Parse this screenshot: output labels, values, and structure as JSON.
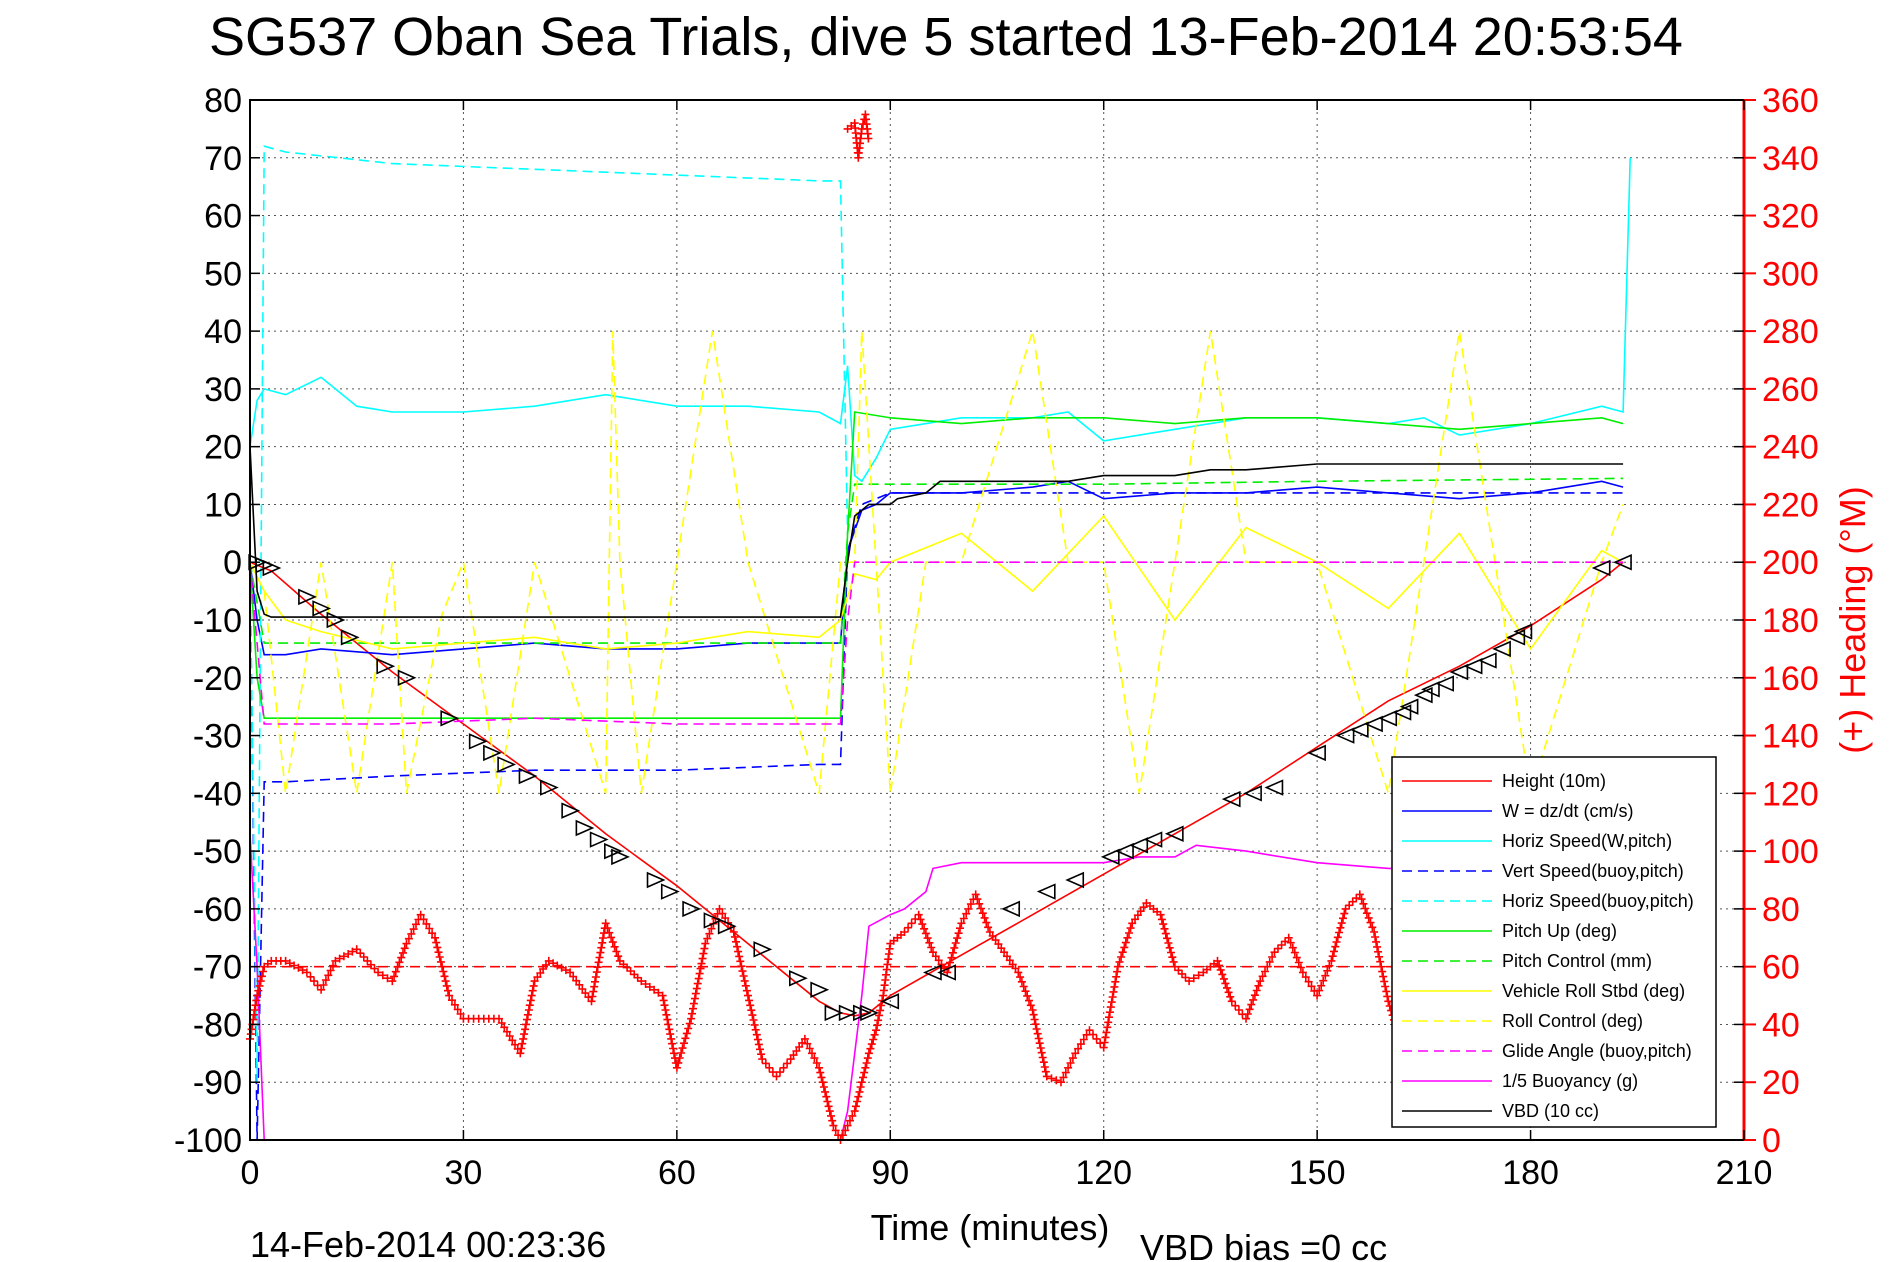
{
  "chart_data": {
    "type": "line",
    "title": "SG537 Oban Sea Trials, dive 5 started 13-Feb-2014 20:53:54",
    "xlabel": "Time (minutes)",
    "ylabel": "",
    "y2label": "(+) Heading (°M)",
    "xlim": [
      0,
      210
    ],
    "ylim": [
      -100,
      80
    ],
    "y2lim": [
      0,
      360
    ],
    "xticks": [
      0,
      30,
      60,
      90,
      120,
      150,
      180,
      210
    ],
    "yticks": [
      -100,
      -90,
      -80,
      -70,
      -60,
      -50,
      -40,
      -30,
      -20,
      -10,
      0,
      10,
      20,
      30,
      40,
      50,
      60,
      70,
      80
    ],
    "y2ticks": [
      0,
      20,
      40,
      60,
      80,
      100,
      120,
      140,
      160,
      180,
      200,
      220,
      240,
      260,
      280,
      300,
      320,
      340,
      360
    ],
    "grid": true,
    "legend_position": "bottom-right",
    "footer_left": "14-Feb-2014 00:23:36",
    "footer_right": "VBD bias =0 cc",
    "colors": {
      "red": "#ff0000",
      "blue": "#0000ff",
      "cyan": "#00ffff",
      "green": "#00ee00",
      "yellow": "#ffff00",
      "magenta": "#ff00ff",
      "black": "#000000"
    },
    "series": [
      {
        "name": "Height (10m)",
        "color": "#ff0000",
        "dash": "solid",
        "x": [
          0,
          1,
          2,
          3,
          10,
          20,
          30,
          40,
          50,
          60,
          70,
          80,
          83,
          85,
          87,
          90,
          100,
          110,
          120,
          130,
          140,
          150,
          160,
          170,
          180,
          190,
          193
        ],
        "y": [
          0,
          -0.5,
          -1,
          -1.5,
          -9,
          -19,
          -28,
          -37,
          -47,
          -56,
          -66,
          -76,
          -78,
          -78.5,
          -78,
          -75,
          -68,
          -61,
          -54,
          -47,
          -40,
          -32,
          -24,
          -18,
          -11,
          -3,
          0
        ]
      },
      {
        "name": "W = dz/dt (cm/s)",
        "color": "#0000ff",
        "dash": "solid",
        "group": "w",
        "x": [
          0,
          1,
          2,
          5,
          10,
          20,
          30,
          40,
          50,
          60,
          70,
          80,
          83,
          84,
          86,
          88,
          90,
          100,
          110,
          115,
          120,
          130,
          140,
          150,
          160,
          170,
          180,
          190,
          193
        ],
        "y": [
          0,
          -10,
          -16,
          -16,
          -15,
          -16,
          -15,
          -14,
          -15,
          -15,
          -14,
          -14,
          -14,
          2,
          9,
          10,
          12,
          12,
          13,
          14,
          11,
          12,
          12,
          13,
          12,
          11,
          12,
          14,
          13
        ]
      },
      {
        "name": "Horiz Speed(W,pitch)",
        "color": "#00ffff",
        "dash": "solid",
        "group": "hs",
        "x": [
          0,
          1,
          2,
          5,
          10,
          15,
          20,
          30,
          40,
          50,
          60,
          70,
          80,
          83,
          84,
          85,
          86,
          88,
          90,
          100,
          110,
          115,
          120,
          130,
          140,
          150,
          160,
          165,
          170,
          180,
          190,
          193,
          194
        ],
        "y": [
          20,
          28,
          30,
          29,
          32,
          27,
          26,
          26,
          27,
          29,
          27,
          27,
          26,
          24,
          34,
          15,
          14,
          18,
          23,
          25,
          25,
          26,
          21,
          23,
          25,
          25,
          24,
          25,
          22,
          24,
          27,
          26,
          70
        ]
      },
      {
        "name": "Vert Speed(buoy,pitch)",
        "color": "#0000ff",
        "dash": "dashed",
        "x": [
          0,
          1,
          2,
          5,
          20,
          40,
          60,
          80,
          83,
          84,
          86,
          88,
          90,
          120,
          150,
          193
        ],
        "y": [
          0,
          -100,
          -38,
          -38,
          -37,
          -36,
          -36,
          -35,
          -35,
          2,
          10,
          11,
          12,
          12,
          12,
          12
        ]
      },
      {
        "name": "Horiz Speed(buoy,pitch)",
        "color": "#00ffff",
        "dash": "dashed",
        "x": [
          0,
          1,
          2,
          5,
          20,
          40,
          60,
          80,
          83,
          84
        ],
        "y": [
          0,
          -90,
          72,
          71,
          69,
          68,
          67,
          66,
          66,
          5
        ]
      },
      {
        "name": "Pitch Up (deg)",
        "color": "#00ee00",
        "dash": "solid",
        "x": [
          0,
          1,
          2,
          5,
          20,
          40,
          60,
          80,
          83,
          84,
          85,
          90,
          100,
          110,
          120,
          130,
          140,
          150,
          160,
          170,
          180,
          190,
          193
        ],
        "y": [
          0,
          -20,
          -27,
          -27,
          -27,
          -27,
          -27,
          -27,
          -27,
          5,
          26,
          25,
          24,
          25,
          25,
          24,
          25,
          25,
          24,
          23,
          24,
          25,
          24
        ]
      },
      {
        "name": "Pitch Control (mm)",
        "color": "#00ee00",
        "dash": "dashed",
        "x": [
          0,
          2,
          5,
          80,
          83,
          84,
          85,
          120,
          150,
          193
        ],
        "y": [
          0,
          -14,
          -14,
          -14,
          -14,
          5,
          13.5,
          13.5,
          14,
          14.5
        ]
      },
      {
        "name": "Vehicle Roll Stbd (deg)",
        "color": "#ffff00",
        "dash": "solid",
        "x": [
          0,
          2,
          5,
          10,
          20,
          30,
          40,
          50,
          60,
          70,
          80,
          83,
          85,
          88,
          90,
          100,
          110,
          120,
          130,
          140,
          150,
          160,
          170,
          180,
          190,
          193
        ],
        "y": [
          0,
          -5,
          -10,
          -12,
          -15,
          -14,
          -13,
          -15,
          -14,
          -12,
          -13,
          -10,
          -2,
          -3,
          0,
          5,
          -5,
          8,
          -10,
          6,
          0,
          -8,
          5,
          -15,
          2,
          0
        ]
      },
      {
        "name": "Roll Control (deg)",
        "color": "#ffff00",
        "dash": "dashed",
        "x": [
          0,
          2,
          5,
          10,
          15,
          20,
          22,
          27,
          30,
          35,
          40,
          50,
          51,
          52,
          55,
          60,
          65,
          70,
          80,
          83,
          85,
          86,
          90,
          95,
          100,
          110,
          115,
          120,
          125,
          130,
          135,
          140,
          150,
          160,
          170,
          180,
          190,
          193
        ],
        "y": [
          0,
          -5,
          -40,
          0,
          -40,
          0,
          -40,
          -9,
          0,
          -40,
          0,
          -40,
          40,
          0,
          -40,
          0,
          40,
          0,
          -40,
          0,
          0,
          40,
          -40,
          0,
          0,
          40,
          0,
          0,
          -40,
          0,
          40,
          0,
          0,
          -40,
          40,
          -40,
          0,
          10
        ]
      },
      {
        "name": "Glide Angle (buoy,pitch)",
        "color": "#ff00ff",
        "dash": "dashed",
        "x": [
          0,
          2,
          5,
          20,
          40,
          60,
          80,
          83,
          84,
          85,
          90,
          120,
          150,
          180,
          193
        ],
        "y": [
          0,
          -28,
          -28,
          -28,
          -27,
          -28,
          -28,
          -28,
          -10,
          0,
          0,
          0,
          0,
          0,
          0
        ]
      },
      {
        "name": "1/5 Buoyancy (g)",
        "color": "#ff00ff",
        "dash": "solid",
        "x": [
          0,
          1,
          2,
          3,
          4,
          70,
          80,
          83,
          84,
          86,
          87,
          90,
          92,
          95,
          96,
          100,
          110,
          120,
          125,
          130,
          133,
          140,
          150,
          160,
          170
        ],
        "y": [
          -47,
          -70,
          -100,
          -100,
          -100,
          -100,
          -100,
          -100,
          -95,
          -75,
          -63,
          -61,
          -60,
          -57,
          -53,
          -52,
          -52,
          -52,
          -51,
          -51,
          -49,
          -50,
          -52,
          -53,
          -53
        ]
      },
      {
        "name": "VBD (10 cc)",
        "color": "#000000",
        "dash": "solid",
        "x": [
          0,
          1,
          2,
          3,
          5,
          20,
          40,
          60,
          80,
          83,
          84,
          85,
          86,
          87,
          89,
          90,
          91,
          95,
          96,
          97,
          100,
          110,
          115,
          120,
          125,
          130,
          135,
          140,
          150,
          160,
          170,
          180,
          190,
          193
        ],
        "y": [
          20,
          -5,
          -9,
          -9.5,
          -9.5,
          -9.5,
          -9.5,
          -9.5,
          -9.5,
          -9.5,
          0,
          8,
          9,
          10,
          10,
          10,
          11,
          12,
          13,
          14,
          14,
          14,
          14,
          15,
          15,
          15,
          16,
          16,
          17,
          17,
          17,
          17,
          17,
          17
        ]
      },
      {
        "name": "Heading",
        "color": "#ff0000",
        "dash": "none",
        "marker": "+",
        "axis": "right",
        "x": [
          0,
          1,
          2,
          3,
          5,
          8,
          10,
          12,
          15,
          18,
          20,
          22,
          24,
          26,
          28,
          30,
          35,
          38,
          40,
          42,
          45,
          48,
          50,
          52,
          55,
          58,
          60,
          62,
          64,
          66,
          68,
          70,
          72,
          74,
          76,
          78,
          80,
          82,
          83,
          84,
          85,
          86,
          87,
          88,
          89,
          90,
          92,
          94,
          96,
          98,
          100,
          102,
          104,
          106,
          108,
          110,
          112,
          114,
          116,
          118,
          120,
          122,
          124,
          126,
          128,
          130,
          132,
          134,
          136,
          138,
          140,
          142,
          144,
          146,
          148,
          150,
          152,
          154,
          156,
          158,
          160,
          162
        ],
        "y": [
          35,
          50,
          60,
          62,
          62,
          58,
          52,
          62,
          66,
          58,
          55,
          68,
          78,
          70,
          50,
          42,
          42,
          30,
          55,
          62,
          58,
          48,
          75,
          62,
          55,
          50,
          25,
          42,
          68,
          80,
          72,
          50,
          28,
          22,
          28,
          35,
          25,
          5,
          0,
          5,
          10,
          20,
          30,
          38,
          50,
          68,
          72,
          78,
          65,
          58,
          75,
          85,
          72,
          65,
          58,
          45,
          22,
          20,
          30,
          38,
          32,
          60,
          75,
          82,
          78,
          60,
          55,
          58,
          62,
          48,
          42,
          55,
          65,
          70,
          58,
          50,
          62,
          80,
          85,
          72,
          48,
          32
        ]
      },
      {
        "name": "Heading target",
        "color": "#ff0000",
        "dash": "dashed",
        "axis": "right",
        "x": [
          0,
          193
        ],
        "y": [
          60,
          60
        ]
      },
      {
        "name": "Heading early",
        "color": "#ff0000",
        "dash": "none",
        "marker": "+",
        "axis": "right",
        "x": [
          84,
          85,
          85.5,
          86,
          86.5,
          87
        ],
        "y": [
          350,
          352,
          340,
          350,
          355,
          345
        ]
      }
    ],
    "markers": {
      "symbol": "triangle",
      "x": [
        1,
        2,
        3,
        8,
        10,
        12,
        14,
        19,
        22,
        28,
        32,
        34,
        36,
        39,
        42,
        45,
        47,
        49,
        51,
        52,
        57,
        59,
        62,
        65,
        67,
        72,
        77,
        80,
        82,
        84,
        86,
        87,
        90,
        96,
        98,
        107,
        112,
        116,
        121,
        123,
        125,
        127,
        130,
        138,
        141,
        144,
        150,
        154,
        156,
        158,
        160,
        162,
        163,
        165,
        166,
        168,
        170,
        172,
        174,
        176,
        178,
        179,
        190,
        193
      ],
      "y": [
        0,
        -0.5,
        -1,
        -6,
        -8,
        -10,
        -13,
        -18,
        -20,
        -27,
        -31,
        -33,
        -35,
        -37,
        -39,
        -43,
        -46,
        -48,
        -50,
        -51,
        -55,
        -57,
        -60,
        -62,
        -63,
        -67,
        -72,
        -74,
        -78,
        -78,
        -78,
        -78,
        -76,
        -71,
        -71,
        -60,
        -57,
        -55,
        -51,
        -50,
        -49,
        -48,
        -47,
        -41,
        -40,
        -39,
        -33,
        -30,
        -29,
        -28,
        -27,
        -26,
        -25,
        -23,
        -22,
        -21,
        -19,
        -18,
        -17,
        -15,
        -13,
        -12,
        -1,
        0
      ]
    }
  }
}
